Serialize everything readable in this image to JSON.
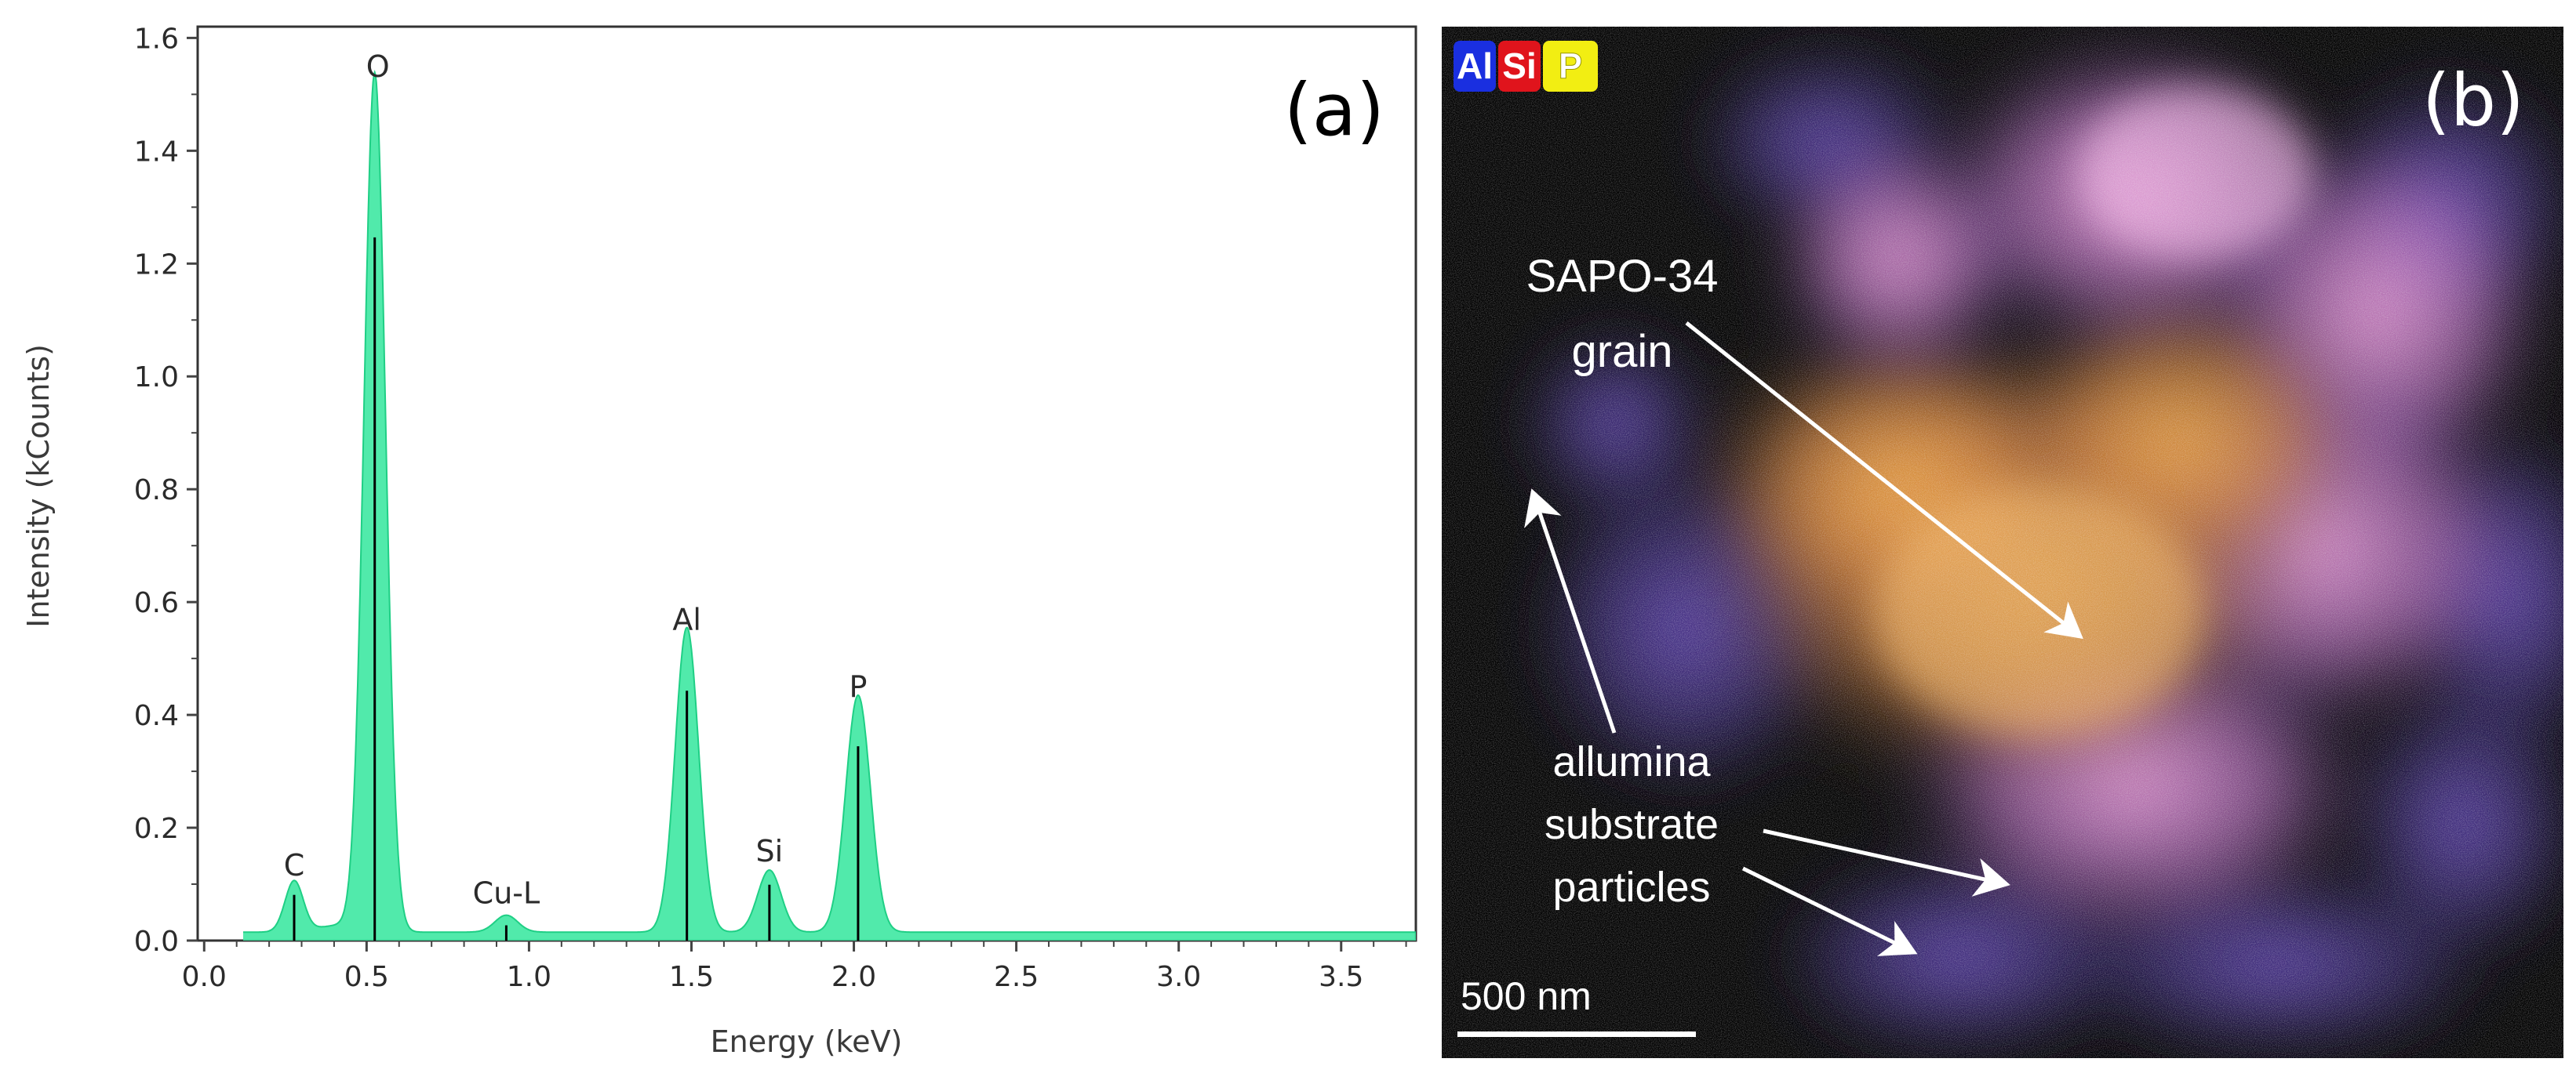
{
  "panel_a": {
    "label": "(a)",
    "chart_data": {
      "type": "area",
      "title": "",
      "xlabel": "Energy (keV)",
      "ylabel": "Intensity (kCounts)",
      "xlim": [
        -0.02,
        3.73
      ],
      "ylim": [
        0,
        1.62
      ],
      "xticks": [
        "0.0",
        "0.5",
        "1.0",
        "1.5",
        "2.0",
        "2.5",
        "3.0",
        "3.5"
      ],
      "yticks": [
        "0.0",
        "0.2",
        "0.4",
        "0.6",
        "0.8",
        "1.0",
        "1.2",
        "1.4",
        "1.6"
      ],
      "baseline": 0.015,
      "peaks": [
        {
          "label": "C",
          "energy": 0.277,
          "height": 0.09,
          "width": 0.028
        },
        {
          "label": "O",
          "energy": 0.525,
          "height": 1.52,
          "width": 0.033
        },
        {
          "label": "Cu-L",
          "energy": 0.93,
          "height": 0.03,
          "width": 0.035
        },
        {
          "label": "Al",
          "energy": 1.486,
          "height": 0.54,
          "width": 0.036
        },
        {
          "label": "Si",
          "energy": 1.74,
          "height": 0.11,
          "width": 0.036
        },
        {
          "label": "P",
          "energy": 2.013,
          "height": 0.42,
          "width": 0.038
        }
      ],
      "colors": {
        "fill": "#3ee8a2",
        "outline": "#1fcf85",
        "marker": "#000000",
        "axis": "#444444"
      }
    }
  },
  "panel_b": {
    "label": "(b)",
    "legend": [
      {
        "symbol": "Al",
        "color": "#1a2fe0"
      },
      {
        "symbol": "Si",
        "color": "#e0141c"
      },
      {
        "symbol": "P",
        "color": "#f2ee12"
      }
    ],
    "annotation_grain": [
      "SAPO-34",
      "grain"
    ],
    "annotation_substrate": [
      "allumina",
      "substrate",
      "particles"
    ],
    "scale_bar_label": "500 nm"
  }
}
